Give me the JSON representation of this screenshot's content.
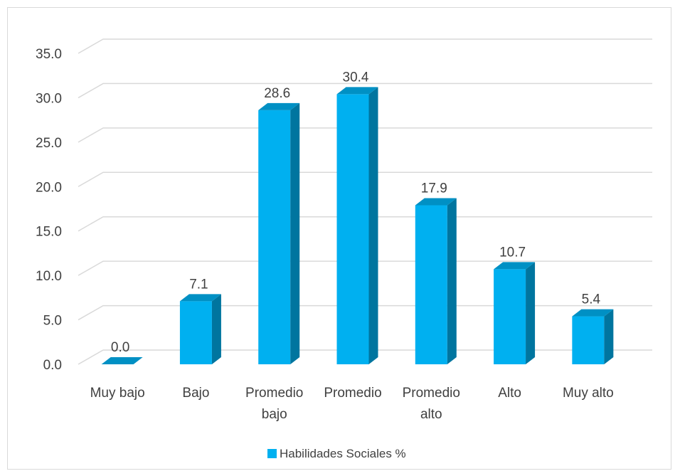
{
  "chart_data": {
    "type": "bar",
    "categories": [
      "Muy bajo",
      "Bajo",
      "Promedio bajo",
      "Promedio",
      "Promedio alto",
      "Alto",
      "Muy alto"
    ],
    "series": [
      {
        "name": "Habilidades Sociales %",
        "values": [
          0.0,
          7.1,
          28.6,
          30.4,
          17.9,
          10.7,
          5.4
        ]
      }
    ],
    "data_labels": [
      "0.0",
      "7.1",
      "28.6",
      "30.4",
      "17.9",
      "10.7",
      "5.4"
    ],
    "y_ticks": [
      "0.0",
      "5.0",
      "10.0",
      "15.0",
      "20.0",
      "25.0",
      "30.0",
      "35.0"
    ],
    "ylim": [
      0,
      35
    ],
    "legend": "bottom",
    "grid": true,
    "colors": {
      "bar_front": "#00b0f0",
      "bar_side": "#00759f",
      "bar_top": "#0090c4",
      "grid": "#d9d9d9",
      "text": "#404040"
    }
  }
}
